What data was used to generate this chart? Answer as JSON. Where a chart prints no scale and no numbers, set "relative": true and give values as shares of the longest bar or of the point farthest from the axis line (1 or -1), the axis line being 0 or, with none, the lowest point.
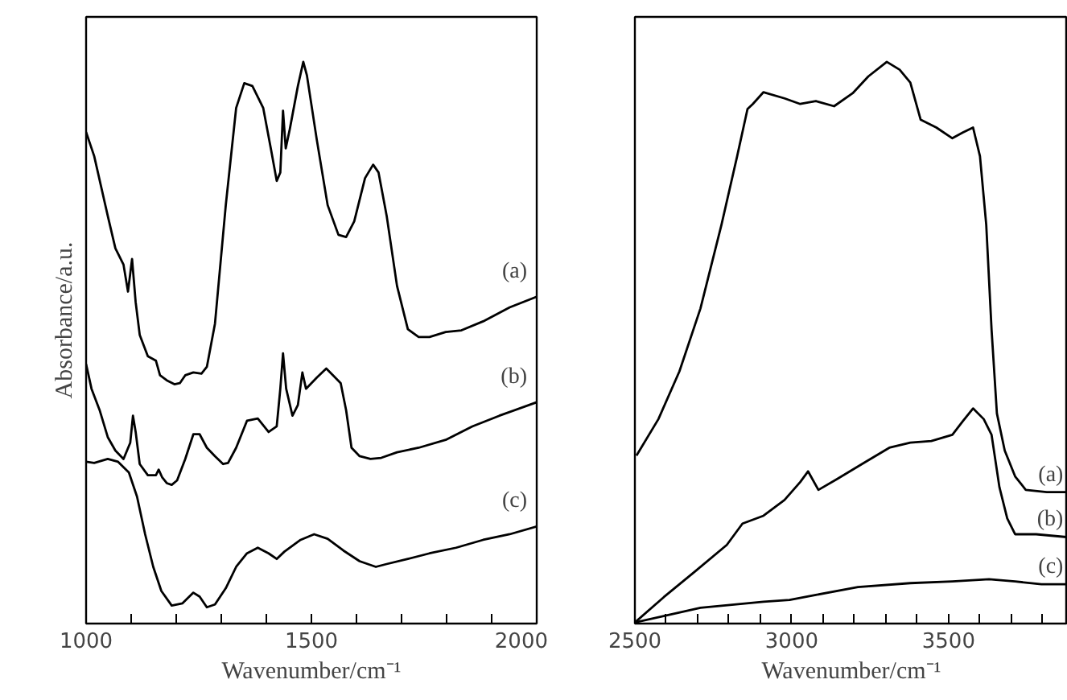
{
  "chart_data": [
    {
      "type": "line",
      "relative": true,
      "xlabel": "Wavenumber/cm⁻¹",
      "ylabel": "Absorbance/a.u.",
      "xlim": [
        1000,
        2000
      ],
      "xticks": [
        1000,
        {
          "value": 1100,
          "label": null
        },
        {
          "value": 1200,
          "label": null
        },
        {
          "value": 1300,
          "label": null
        },
        {
          "value": 1400,
          "label": null
        },
        1500,
        {
          "value": 1600,
          "label": null
        },
        {
          "value": 1700,
          "label": null
        },
        {
          "value": 1800,
          "label": null
        },
        {
          "value": 1900,
          "label": null
        },
        2000
      ],
      "line_style": "solid",
      "series": [
        {
          "name": "(a)",
          "color": "#000000",
          "x": [
            1000,
            1018,
            1048,
            1065,
            1083,
            1093,
            1102,
            1110,
            1119,
            1137,
            1155,
            1164,
            1179,
            1196,
            1208,
            1220,
            1238,
            1256,
            1268,
            1286,
            1310,
            1333,
            1351,
            1369,
            1393,
            1411,
            1423,
            1431,
            1437,
            1443,
            1452,
            1470,
            1482,
            1490,
            1512,
            1536,
            1560,
            1577,
            1595,
            1619,
            1637,
            1649,
            1667,
            1690,
            1714,
            1738,
            1762,
            1798,
            1833,
            1881,
            1940,
            2000
          ],
          "values": [
            0.875,
            0.832,
            0.726,
            0.668,
            0.639,
            0.591,
            0.649,
            0.572,
            0.514,
            0.476,
            0.468,
            0.442,
            0.433,
            0.426,
            0.428,
            0.442,
            0.447,
            0.445,
            0.457,
            0.534,
            0.745,
            0.918,
            0.962,
            0.957,
            0.918,
            0.841,
            0.788,
            0.803,
            0.913,
            0.846,
            0.88,
            0.957,
            1.0,
            0.976,
            0.861,
            0.745,
            0.692,
            0.688,
            0.716,
            0.793,
            0.817,
            0.803,
            0.726,
            0.601,
            0.524,
            0.51,
            0.51,
            0.519,
            0.522,
            0.538,
            0.563,
            0.582
          ]
        },
        {
          "name": "(b)",
          "color": "#000000",
          "x": [
            1000,
            1012,
            1030,
            1048,
            1065,
            1083,
            1098,
            1104,
            1110,
            1119,
            1137,
            1155,
            1161,
            1169,
            1179,
            1190,
            1202,
            1220,
            1238,
            1252,
            1268,
            1286,
            1304,
            1315,
            1333,
            1357,
            1381,
            1405,
            1423,
            1431,
            1437,
            1444,
            1458,
            1470,
            1480,
            1488,
            1512,
            1533,
            1548,
            1565,
            1577,
            1589,
            1607,
            1631,
            1655,
            1690,
            1738,
            1798,
            1857,
            1917,
            2000
          ],
          "values": [
            0.462,
            0.418,
            0.38,
            0.332,
            0.308,
            0.293,
            0.322,
            0.37,
            0.341,
            0.284,
            0.264,
            0.264,
            0.274,
            0.26,
            0.25,
            0.247,
            0.255,
            0.293,
            0.337,
            0.337,
            0.313,
            0.298,
            0.284,
            0.286,
            0.313,
            0.361,
            0.365,
            0.341,
            0.351,
            0.418,
            0.481,
            0.418,
            0.37,
            0.389,
            0.447,
            0.418,
            0.438,
            0.454,
            0.442,
            0.428,
            0.38,
            0.313,
            0.298,
            0.293,
            0.295,
            0.305,
            0.313,
            0.327,
            0.351,
            0.37,
            0.394
          ]
        },
        {
          "name": "(c)",
          "color": "#000000",
          "x": [
            1000,
            1018,
            1048,
            1071,
            1095,
            1113,
            1131,
            1149,
            1167,
            1190,
            1214,
            1238,
            1252,
            1268,
            1286,
            1310,
            1333,
            1357,
            1381,
            1405,
            1423,
            1440,
            1476,
            1506,
            1536,
            1571,
            1607,
            1643,
            1667,
            1714,
            1762,
            1821,
            1881,
            1940,
            2000
          ],
          "values": [
            0.288,
            0.286,
            0.293,
            0.288,
            0.269,
            0.226,
            0.159,
            0.101,
            0.058,
            0.032,
            0.036,
            0.055,
            0.048,
            0.029,
            0.034,
            0.063,
            0.101,
            0.125,
            0.135,
            0.125,
            0.115,
            0.128,
            0.149,
            0.159,
            0.151,
            0.13,
            0.111,
            0.101,
            0.106,
            0.115,
            0.125,
            0.135,
            0.149,
            0.159,
            0.173
          ]
        }
      ]
    },
    {
      "type": "line",
      "relative": true,
      "xlabel": "Wavenumber/cm⁻¹",
      "xlim": [
        2500,
        3880
      ],
      "xticks": [
        2500,
        {
          "value": 2600,
          "label": null
        },
        {
          "value": 2700,
          "label": null
        },
        {
          "value": 2800,
          "label": null
        },
        {
          "value": 2900,
          "label": null
        },
        3000,
        {
          "value": 3100,
          "label": null
        },
        {
          "value": 3200,
          "label": null
        },
        {
          "value": 3300,
          "label": null
        },
        {
          "value": 3400,
          "label": null
        },
        3500,
        {
          "value": 3600,
          "label": null
        },
        {
          "value": 3700,
          "label": null
        },
        {
          "value": 3800,
          "label": null
        }
      ],
      "line_style": "solid",
      "series": [
        {
          "name": "(a)",
          "color": "#000000",
          "x": [
            2505,
            2575,
            2642,
            2709,
            2776,
            2826,
            2859,
            2876,
            2910,
            2977,
            3027,
            3077,
            3135,
            3194,
            3244,
            3303,
            3344,
            3378,
            3411,
            3461,
            3512,
            3545,
            3578,
            3600,
            3620,
            3637,
            3654,
            3679,
            3712,
            3746,
            3813,
            3876
          ],
          "values": [
            0.299,
            0.364,
            0.449,
            0.561,
            0.71,
            0.832,
            0.916,
            0.925,
            0.946,
            0.935,
            0.925,
            0.93,
            0.921,
            0.944,
            0.974,
            1.0,
            0.986,
            0.963,
            0.897,
            0.883,
            0.864,
            0.874,
            0.883,
            0.832,
            0.71,
            0.523,
            0.374,
            0.308,
            0.262,
            0.238,
            0.234,
            0.234
          ]
        },
        {
          "name": "(b)",
          "color": "#000000",
          "x": [
            2500,
            2592,
            2692,
            2793,
            2843,
            2910,
            2977,
            3027,
            3052,
            3085,
            3144,
            3227,
            3311,
            3378,
            3445,
            3512,
            3545,
            3578,
            3612,
            3637,
            3662,
            3687,
            3712,
            3779,
            3876
          ],
          "values": [
            0.002,
            0.047,
            0.093,
            0.14,
            0.178,
            0.192,
            0.22,
            0.252,
            0.271,
            0.238,
            0.257,
            0.285,
            0.313,
            0.322,
            0.325,
            0.336,
            0.36,
            0.383,
            0.364,
            0.336,
            0.243,
            0.187,
            0.159,
            0.159,
            0.154
          ]
        },
        {
          "name": "(c)",
          "color": "#000000",
          "x": [
            2500,
            2709,
            2910,
            2993,
            3077,
            3211,
            3378,
            3512,
            3629,
            3712,
            3796,
            3876
          ],
          "values": [
            0.002,
            0.028,
            0.039,
            0.042,
            0.051,
            0.065,
            0.072,
            0.075,
            0.079,
            0.075,
            0.07,
            0.07
          ]
        }
      ]
    }
  ]
}
